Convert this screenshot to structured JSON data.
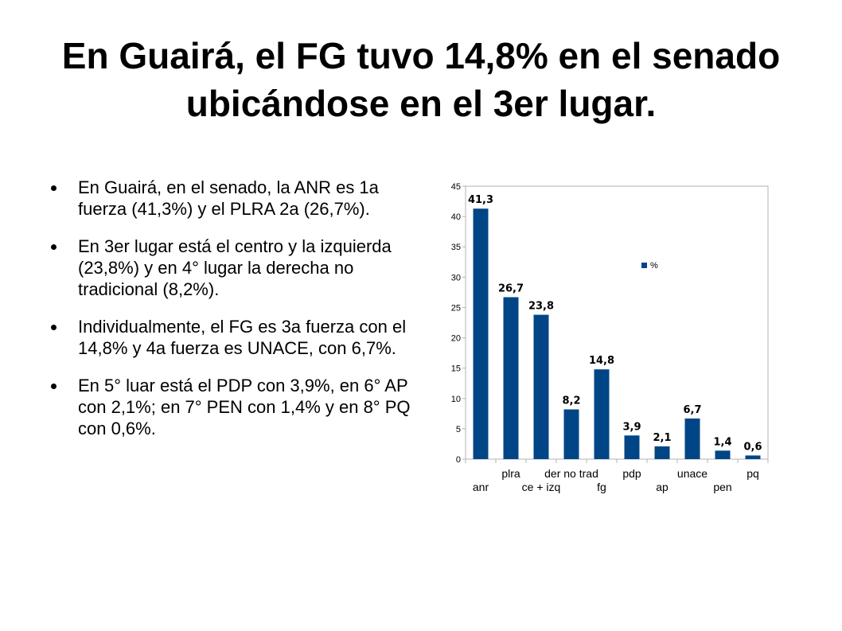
{
  "slide": {
    "title": "En Guairá, el FG tuvo 14,8% en el senado ubicándose en el 3er lugar.",
    "bullets": [
      "En Guairá, en el senado, la ANR es 1a fuerza (41,3%) y el PLRA 2a (26,7%).",
      "En 3er lugar está el centro y la izquierda (23,8%) y en 4° lugar la derecha no tradicional (8,2%).",
      "Individualmente, el FG es 3a fuerza con el 14,8% y 4a fuerza es UNACE, con 6,7%.",
      "En 5° luar está el PDP con 3,9%, en 6° AP con 2,1%; en 7° PEN con 1,4% y en 8° PQ con 0,6%."
    ]
  },
  "chart_data": {
    "type": "bar",
    "categories": [
      "anr",
      "plra",
      "ce + izq",
      "der no trad",
      "fg",
      "pdp",
      "ap",
      "unace",
      "pen",
      "pq"
    ],
    "series": [
      {
        "name": "%",
        "values": [
          41.3,
          26.7,
          23.8,
          8.2,
          14.8,
          3.9,
          2.1,
          6.7,
          1.4,
          0.6
        ],
        "labels": [
          "41,3",
          "26,7",
          "23,8",
          "8,2",
          "14,8",
          "3,9",
          "2,1",
          "6,7",
          "1,4",
          "0,6"
        ]
      }
    ],
    "ylim": [
      0,
      45
    ],
    "yticks": [
      0,
      5,
      10,
      15,
      20,
      25,
      30,
      35,
      40,
      45
    ],
    "grid": false,
    "legend": "right",
    "colors": {
      "bar": "#004586"
    }
  }
}
